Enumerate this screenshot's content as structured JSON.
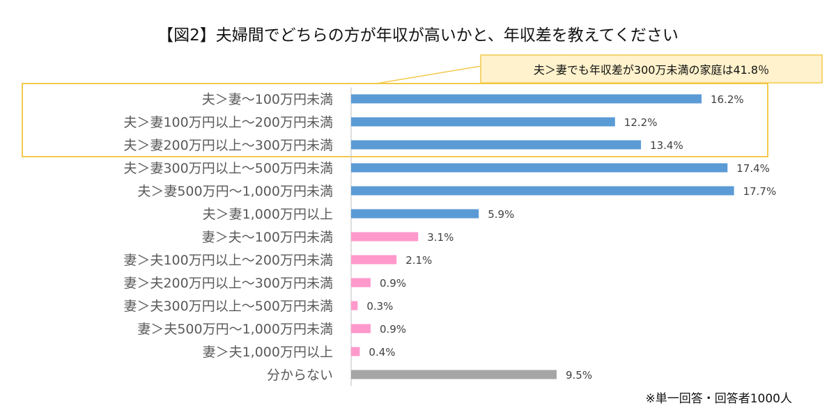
{
  "chart_data": {
    "type": "bar",
    "orientation": "horizontal",
    "title": "【図2】夫婦間でどちらの方が年収が高いかと、年収差を教えてください",
    "categories": [
      "夫＞妻〜100万円未満",
      "夫＞妻100万円以上〜200万円未満",
      "夫＞妻200万円以上〜300万円未満",
      "夫＞妻300万円以上〜500万円未満",
      "夫＞妻500万円〜1,000万円未満",
      "夫＞妻1,000万円以上",
      "妻＞夫〜100万円未満",
      "妻＞夫100万円以上〜200万円未満",
      "妻＞夫200万円以上〜300万円未満",
      "妻＞夫300万円以上〜500万円未満",
      "妻＞夫500万円〜1,000万円未満",
      "妻＞夫1,000万円以上",
      "分からない"
    ],
    "values": [
      16.2,
      12.2,
      13.4,
      17.4,
      17.7,
      5.9,
      3.1,
      2.1,
      0.9,
      0.3,
      0.9,
      0.4,
      9.5
    ],
    "value_labels": [
      "16.2%",
      "12.2%",
      "13.4%",
      "17.4%",
      "17.7%",
      "5.9%",
      "3.1%",
      "2.1%",
      "0.9%",
      "0.3%",
      "0.9%",
      "0.4%",
      "9.5%"
    ],
    "bar_colors": [
      "#5B9BD5",
      "#5B9BD5",
      "#5B9BD5",
      "#5B9BD5",
      "#5B9BD5",
      "#5B9BD5",
      "#FF99CC",
      "#FF99CC",
      "#FF99CC",
      "#FF99CC",
      "#FF99CC",
      "#FF99CC",
      "#A5A5A5"
    ],
    "xlim": [
      0,
      20
    ],
    "grid": false,
    "legend": "none",
    "annotation": {
      "text": "夫＞妻でも年収差が300万未満の家庭は41.8％",
      "highlighted_categories": [
        0,
        1,
        2
      ],
      "border_color": "#F2C94C",
      "fill_color": "#FFF2CC"
    },
    "footnote": "※単一回答・回答者1000人"
  }
}
